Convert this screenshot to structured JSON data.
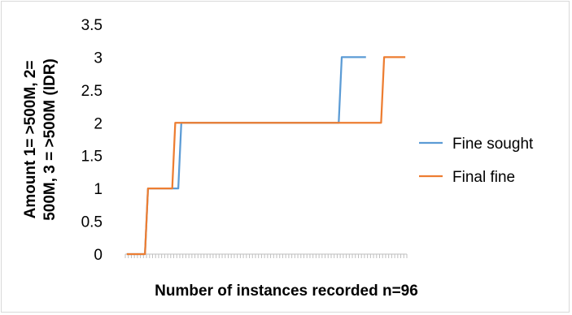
{
  "chart_data": {
    "type": "line",
    "xlabel": "Number of instances recorded n=96",
    "ylabel_lines": [
      "Amount 1= >500M, 2=",
      "500M, 3 = >500M (IDR)"
    ],
    "ylim": [
      0,
      3.5
    ],
    "y_ticks": [
      "0",
      "0.5",
      "1",
      "1.5",
      "2",
      "2.5",
      "3",
      "3.5"
    ],
    "y_tick_values": [
      0,
      0.5,
      1,
      1.5,
      2,
      2.5,
      3,
      3.5
    ],
    "grid": false,
    "legend_position": "right",
    "series": [
      {
        "name": "Fine sought",
        "color": "#5b9bd5",
        "values": [
          0,
          0,
          0,
          0,
          0,
          0,
          0,
          1,
          1,
          1,
          1,
          1,
          1,
          1,
          1,
          1,
          1,
          1,
          2,
          2,
          2,
          2,
          2,
          2,
          2,
          2,
          2,
          2,
          2,
          2,
          2,
          2,
          2,
          2,
          2,
          2,
          2,
          2,
          2,
          2,
          2,
          2,
          2,
          2,
          2,
          2,
          2,
          2,
          2,
          2,
          2,
          2,
          2,
          2,
          2,
          2,
          2,
          2,
          2,
          2,
          2,
          2,
          2,
          2,
          2,
          2,
          2,
          2,
          2,
          2,
          2,
          3,
          3,
          3,
          3,
          3,
          3,
          3,
          3,
          3
        ]
      },
      {
        "name": "Final fine",
        "color": "#ed7d31",
        "values": [
          0,
          0,
          0,
          0,
          0,
          0,
          0,
          1,
          1,
          1,
          1,
          1,
          1,
          1,
          1,
          1,
          2,
          2,
          2,
          2,
          2,
          2,
          2,
          2,
          2,
          2,
          2,
          2,
          2,
          2,
          2,
          2,
          2,
          2,
          2,
          2,
          2,
          2,
          2,
          2,
          2,
          2,
          2,
          2,
          2,
          2,
          2,
          2,
          2,
          2,
          2,
          2,
          2,
          2,
          2,
          2,
          2,
          2,
          2,
          2,
          2,
          2,
          2,
          2,
          2,
          2,
          2,
          2,
          2,
          2,
          2,
          2,
          2,
          2,
          2,
          2,
          2,
          2,
          2,
          2,
          2,
          2,
          2,
          2,
          2,
          3,
          3,
          3,
          3,
          3,
          3,
          3,
          3
        ]
      }
    ]
  }
}
